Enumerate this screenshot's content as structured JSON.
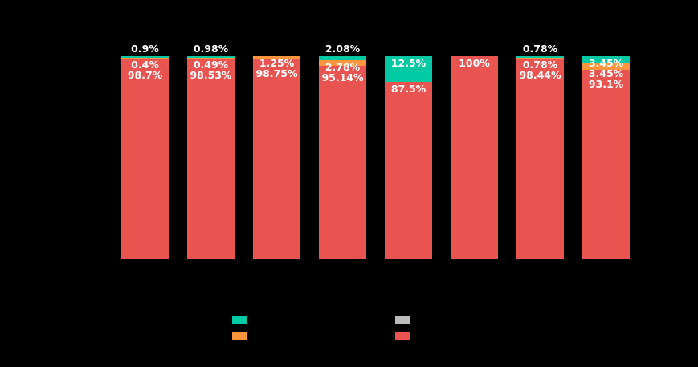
{
  "page": {
    "background_color": "#000000",
    "label_text_color": "#FFFFFF",
    "title_visible": false,
    "axis_tick_labels_visible": false
  },
  "chart_data": {
    "type": "bar",
    "variant": "stacked-100-percent-column",
    "orientation": "vertical",
    "n_bars": 8,
    "ylim": [
      0,
      100
    ],
    "grid": false,
    "legend_position": "bottom",
    "stack_order_top_to_bottom": [
      "teal",
      "orange",
      "gray",
      "red"
    ],
    "series": [
      {
        "name": "teal",
        "color": "#00C9A3",
        "values": [
          0.9,
          0.98,
          0,
          2.08,
          12.5,
          0,
          0.78,
          3.45
        ]
      },
      {
        "name": "orange",
        "color": "#FC953D",
        "values": [
          0.4,
          0.49,
          1.25,
          2.78,
          0,
          0,
          0.78,
          3.45
        ]
      },
      {
        "name": "gray",
        "color": "#BBBBBB",
        "values": [
          0,
          0,
          0,
          0,
          0,
          0,
          0,
          0
        ]
      },
      {
        "name": "red",
        "color": "#E95450",
        "values": [
          98.7,
          98.53,
          98.75,
          95.14,
          87.5,
          100,
          98.44,
          93.1
        ]
      }
    ],
    "bar_labels": [
      [
        {
          "text": "0.9%",
          "series": "teal",
          "placement": "above"
        },
        {
          "text": "0.4%",
          "series": "orange",
          "placement": "inside"
        },
        {
          "text": "98.7%",
          "series": "red",
          "placement": "inside"
        }
      ],
      [
        {
          "text": "0.98%",
          "series": "teal",
          "placement": "above"
        },
        {
          "text": "0.49%",
          "series": "orange",
          "placement": "inside"
        },
        {
          "text": "98.53%",
          "series": "red",
          "placement": "inside"
        }
      ],
      [
        {
          "text": "1.25%",
          "series": "orange",
          "placement": "inside"
        },
        {
          "text": "98.75%",
          "series": "red",
          "placement": "inside"
        }
      ],
      [
        {
          "text": "2.08%",
          "series": "teal",
          "placement": "above"
        },
        {
          "text": "2.78%",
          "series": "orange",
          "placement": "inside"
        },
        {
          "text": "95.14%",
          "series": "red",
          "placement": "inside"
        }
      ],
      [
        {
          "text": "12.5%",
          "series": "teal",
          "placement": "inside"
        },
        {
          "text": "87.5%",
          "series": "red",
          "placement": "inside"
        }
      ],
      [
        {
          "text": "100%",
          "series": "red",
          "placement": "inside"
        }
      ],
      [
        {
          "text": "0.78%",
          "series": "teal",
          "placement": "above"
        },
        {
          "text": "0.78%",
          "series": "orange",
          "placement": "inside"
        },
        {
          "text": "98.44%",
          "series": "red",
          "placement": "inside"
        }
      ],
      [
        {
          "text": "3.45%",
          "series": "teal",
          "placement": "inside"
        },
        {
          "text": "3.45%",
          "series": "orange",
          "placement": "inside"
        },
        {
          "text": "93.1%",
          "series": "red",
          "placement": "inside"
        }
      ]
    ]
  },
  "legend": {
    "text_visible": false,
    "items": [
      {
        "name": "teal-series-swatch",
        "color": "#00C9A3"
      },
      {
        "name": "orange-series-swatch",
        "color": "#FC953D"
      },
      {
        "name": "gray-series-swatch",
        "color": "#BBBBBB"
      },
      {
        "name": "red-series-swatch",
        "color": "#E95450"
      }
    ]
  }
}
